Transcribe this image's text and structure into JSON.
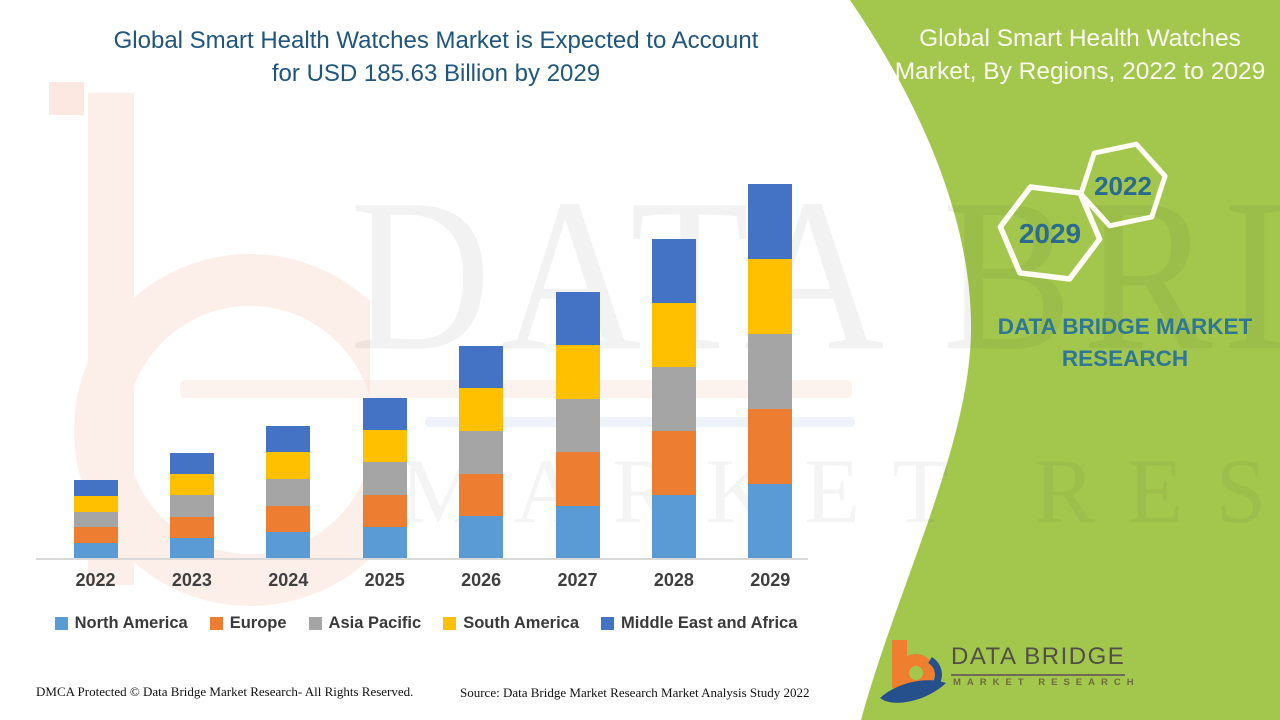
{
  "accent_colors": {
    "panel_green": "#A3C74D",
    "title_blue": "#20557E",
    "teal_text": "#2F7795",
    "hex_year_text": "#2A6B8F"
  },
  "left_panel": {
    "title_line1": "Global Smart Health Watches Market is Expected to Account",
    "title_line2": "for USD 185.63 Billion by 2029",
    "footer_left": "DMCA Protected © Data Bridge Market Research- All Rights Reserved.",
    "footer_right": "Source: Data Bridge Market Research Market Analysis Study 2022"
  },
  "right_panel": {
    "title_line1": "Global Smart Health Watches",
    "title_line2": "Market, By Regions, 2022 to 2029",
    "hexagon_year_back": "2022",
    "hexagon_year_front": "2029",
    "brand_line1": "DATA BRIDGE MARKET",
    "brand_line2": "RESEARCH"
  },
  "watermark": {
    "big_text": "DATA BRIDGE",
    "small_text": "MARKET RESEARCH"
  },
  "logo": {
    "name": "DATA BRIDGE",
    "subtitle": "MARKET RESEARCH"
  },
  "chart_data": {
    "type": "bar",
    "stacked": true,
    "title": "Global Smart Health Watches Market, By Regions, 2022 to 2029",
    "annotation": "USD 185.63 Billion by 2029",
    "value_axis_visible": false,
    "unit": "USD Billion",
    "legend_position": "bottom",
    "categories": [
      "2022",
      "2023",
      "2024",
      "2025",
      "2026",
      "2027",
      "2028",
      "2029"
    ],
    "totals_usd_billion": [
      39.0,
      52.4,
      66.2,
      79.6,
      105.8,
      132.5,
      158.7,
      185.63
    ],
    "series": [
      {
        "name": "North America",
        "color": "#5B9BD5",
        "values": [
          7.8,
          10.48,
          13.24,
          15.92,
          21.16,
          26.5,
          31.74,
          37.13
        ]
      },
      {
        "name": "Europe",
        "color": "#ED7D31",
        "values": [
          7.8,
          10.48,
          13.24,
          15.92,
          21.16,
          26.5,
          31.74,
          37.13
        ]
      },
      {
        "name": "Asia Pacific",
        "color": "#A5A5A5",
        "values": [
          7.8,
          10.48,
          13.24,
          15.92,
          21.16,
          26.5,
          31.74,
          37.13
        ]
      },
      {
        "name": "South America",
        "color": "#FFC000",
        "values": [
          7.8,
          10.48,
          13.24,
          15.92,
          21.16,
          26.5,
          31.74,
          37.13
        ]
      },
      {
        "name": "Middle East and Africa",
        "color": "#4472C4",
        "values": [
          7.8,
          10.48,
          13.24,
          15.92,
          21.16,
          26.5,
          31.74,
          37.13
        ]
      }
    ]
  }
}
